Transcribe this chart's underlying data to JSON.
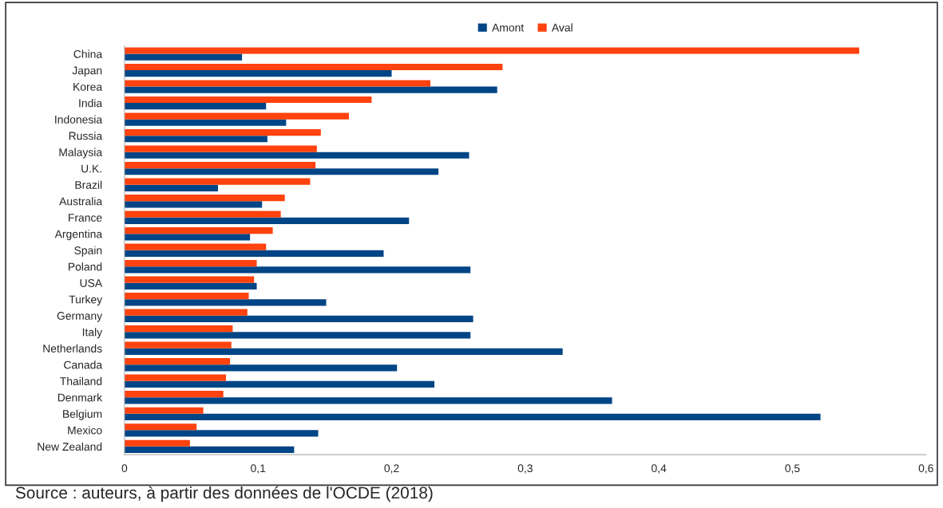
{
  "chart_data": {
    "type": "bar",
    "orientation": "horizontal",
    "categories": [
      "China",
      "Japan",
      "Korea",
      "India",
      "Indonesia",
      "Russia",
      "Malaysia",
      "U.K.",
      "Brazil",
      "Australia",
      "France",
      "Argentina",
      "Spain",
      "Poland",
      "USA",
      "Turkey",
      "Germany",
      "Italy",
      "Netherlands",
      "Canada",
      "Thailand",
      "Denmark",
      "Belgium",
      "Mexico",
      "New Zealand"
    ],
    "series": [
      {
        "name": "Amont",
        "color": "#004586",
        "values": [
          0.088,
          0.2,
          0.279,
          0.106,
          0.121,
          0.107,
          0.258,
          0.235,
          0.07,
          0.103,
          0.213,
          0.094,
          0.194,
          0.259,
          0.099,
          0.151,
          0.261,
          0.259,
          0.328,
          0.204,
          0.232,
          0.365,
          0.521,
          0.145,
          0.127
        ]
      },
      {
        "name": "Aval",
        "color": "#ff420e",
        "values": [
          0.55,
          0.283,
          0.229,
          0.185,
          0.168,
          0.147,
          0.144,
          0.143,
          0.139,
          0.12,
          0.117,
          0.111,
          0.106,
          0.099,
          0.097,
          0.093,
          0.092,
          0.081,
          0.08,
          0.079,
          0.076,
          0.074,
          0.059,
          0.054,
          0.049
        ]
      }
    ],
    "xlim": [
      0,
      0.6
    ],
    "xticks": [
      0,
      {
        "value": 0.1,
        "label": "0,1"
      },
      {
        "value": 0.2,
        "label": "0,2"
      },
      {
        "value": 0.3,
        "label": "0,3"
      },
      {
        "value": 0.4,
        "label": "0,4"
      },
      {
        "value": 0.5,
        "label": "0,5"
      },
      {
        "value": 0.6,
        "label": "0,6"
      }
    ],
    "grid": false,
    "legend": "top",
    "annotations": [
      "Source : auteurs, à partir des données de l'OCDE (2018)"
    ]
  }
}
